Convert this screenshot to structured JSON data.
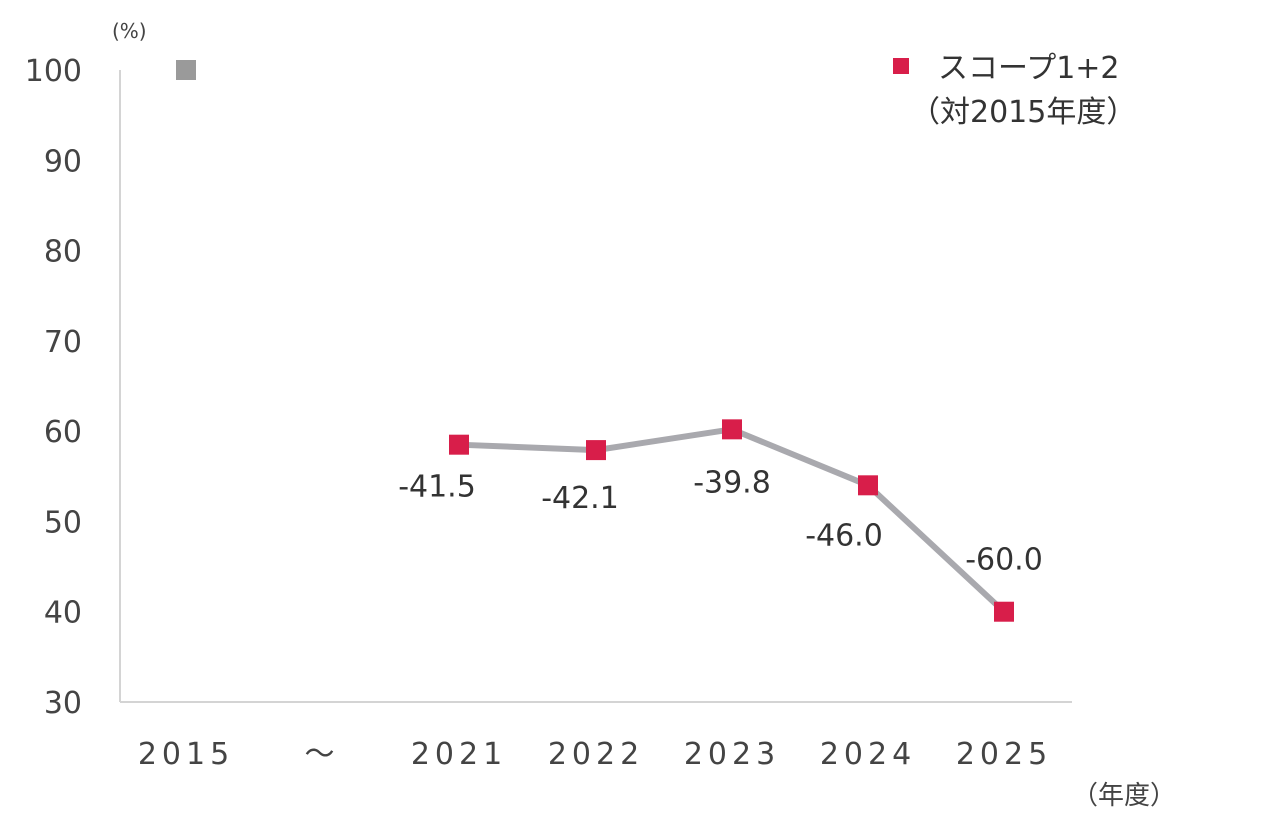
{
  "chart_data": {
    "type": "line",
    "y_unit": "(%)",
    "x_unit": "（年度）",
    "ylim": [
      30,
      100
    ],
    "yticks": [
      100,
      90,
      80,
      70,
      60,
      50,
      40,
      30
    ],
    "categories": [
      "2015",
      "～",
      "2021",
      "2022",
      "2023",
      "2024",
      "2025"
    ],
    "grid": false,
    "legend": {
      "position": "top-right",
      "line1": "スコープ1+2",
      "line2": "（対2015年度）"
    },
    "baseline": {
      "category": "2015",
      "value": 100,
      "color": "#9a9a9a"
    },
    "series": [
      {
        "name": "スコープ1+2",
        "marker_color": "#d81e4a",
        "line_color": "#a9a9ae",
        "points": [
          {
            "category": "2021",
            "value": 58.5,
            "label": "-41.5"
          },
          {
            "category": "2022",
            "value": 57.9,
            "label": "-42.1"
          },
          {
            "category": "2023",
            "value": 60.2,
            "label": "-39.8"
          },
          {
            "category": "2024",
            "value": 54.0,
            "label": "-46.0"
          },
          {
            "category": "2025",
            "value": 40.0,
            "label": "-60.0"
          }
        ]
      }
    ]
  }
}
